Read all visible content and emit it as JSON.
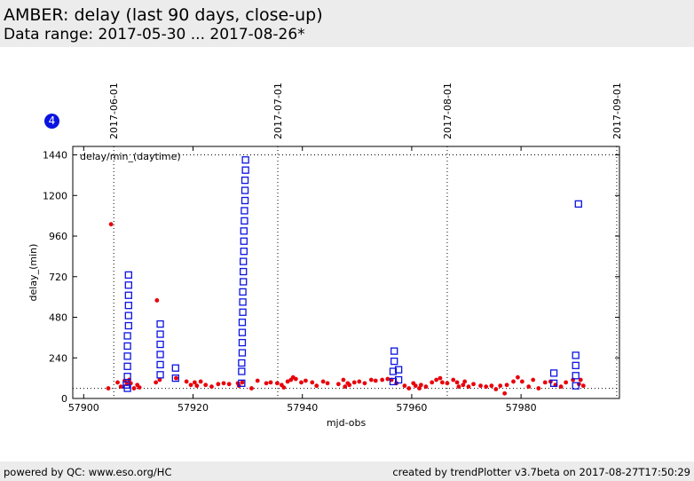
{
  "header": {
    "title": "AMBER: delay (last 90 days, close-up)",
    "subtitle": "Data range: 2017-05-30 ... 2017-08-26*"
  },
  "badge": {
    "label": "4",
    "color": "#0b14e0"
  },
  "footer": {
    "left": "powered by QC: www.eso.org/HC",
    "right": "created by trendPlotter v3.7beta on 2017-08-27T17:50:29"
  },
  "chart_data": {
    "type": "scatter",
    "title": "",
    "annotation": "delay/min_(daytime)",
    "xlabel": "mjd-obs",
    "ylabel": "delay_(min)",
    "xlim": [
      57898,
      57998
    ],
    "ylim": [
      0,
      1490
    ],
    "x_ticks": [
      57900,
      57920,
      57940,
      57960,
      57980
    ],
    "y_ticks": [
      0,
      240,
      480,
      720,
      960,
      1200,
      1440
    ],
    "date_markers": [
      {
        "label": "2017-06-01",
        "x": 57905.5
      },
      {
        "label": "2017-07-01",
        "x": 57935.5
      },
      {
        "label": "2017-08-01",
        "x": 57966.5
      },
      {
        "label": "2017-09-01",
        "x": 57997.5
      }
    ],
    "reference_lines": {
      "upper": 1440,
      "lower": 60
    },
    "grid": false,
    "colors": {
      "red_series": "#e8000b",
      "blue_series": "#0b14e0"
    },
    "series": [
      {
        "marker": "dot",
        "points": [
          [
            57904.5,
            60
          ],
          [
            57905.0,
            1030
          ],
          [
            57906.2,
            95
          ],
          [
            57906.8,
            70
          ],
          [
            57907.5,
            105
          ],
          [
            57907.9,
            85
          ],
          [
            57908.3,
            110
          ],
          [
            57908.6,
            90
          ],
          [
            57909.2,
            60
          ],
          [
            57909.8,
            80
          ],
          [
            57910.2,
            65
          ],
          [
            57913.2,
            95
          ],
          [
            57913.4,
            580
          ],
          [
            57913.9,
            110
          ],
          [
            57916.9,
            120
          ],
          [
            57918.8,
            100
          ],
          [
            57919.6,
            80
          ],
          [
            57920.3,
            95
          ],
          [
            57920.7,
            75
          ],
          [
            57921.4,
            100
          ],
          [
            57922.3,
            80
          ],
          [
            57923.4,
            70
          ],
          [
            57924.6,
            85
          ],
          [
            57925.6,
            90
          ],
          [
            57926.6,
            85
          ],
          [
            57928.2,
            90
          ],
          [
            57928.4,
            75
          ],
          [
            57929.0,
            95
          ],
          [
            57930.7,
            60
          ],
          [
            57931.8,
            105
          ],
          [
            57933.4,
            90
          ],
          [
            57934.2,
            95
          ],
          [
            57935.4,
            90
          ],
          [
            57936.2,
            80
          ],
          [
            57936.6,
            65
          ],
          [
            57937.3,
            100
          ],
          [
            57937.9,
            110
          ],
          [
            57938.3,
            125
          ],
          [
            57938.8,
            115
          ],
          [
            57939.8,
            95
          ],
          [
            57940.6,
            105
          ],
          [
            57941.8,
            95
          ],
          [
            57942.6,
            75
          ],
          [
            57943.8,
            100
          ],
          [
            57944.6,
            90
          ],
          [
            57946.6,
            85
          ],
          [
            57947.5,
            110
          ],
          [
            57947.8,
            70
          ],
          [
            57948.3,
            90
          ],
          [
            57948.6,
            80
          ],
          [
            57949.5,
            95
          ],
          [
            57950.4,
            100
          ],
          [
            57951.4,
            90
          ],
          [
            57952.6,
            110
          ],
          [
            57953.4,
            105
          ],
          [
            57954.6,
            110
          ],
          [
            57955.6,
            115
          ],
          [
            57956.3,
            110
          ],
          [
            57957.2,
            90
          ],
          [
            57958.7,
            75
          ],
          [
            57959.5,
            60
          ],
          [
            57960.3,
            90
          ],
          [
            57960.7,
            75
          ],
          [
            57961.4,
            60
          ],
          [
            57961.7,
            80
          ],
          [
            57962.6,
            70
          ],
          [
            57963.7,
            95
          ],
          [
            57964.5,
            110
          ],
          [
            57965.2,
            120
          ],
          [
            57965.6,
            95
          ],
          [
            57966.5,
            90
          ],
          [
            57967.6,
            110
          ],
          [
            57968.3,
            95
          ],
          [
            57968.6,
            70
          ],
          [
            57969.4,
            80
          ],
          [
            57969.7,
            100
          ],
          [
            57970.4,
            70
          ],
          [
            57971.3,
            85
          ],
          [
            57972.6,
            75
          ],
          [
            57973.6,
            70
          ],
          [
            57974.6,
            75
          ],
          [
            57975.4,
            55
          ],
          [
            57976.2,
            75
          ],
          [
            57977.0,
            30
          ],
          [
            57977.4,
            80
          ],
          [
            57978.6,
            100
          ],
          [
            57979.4,
            125
          ],
          [
            57980.2,
            100
          ],
          [
            57981.4,
            70
          ],
          [
            57982.2,
            110
          ],
          [
            57983.2,
            60
          ],
          [
            57984.4,
            95
          ],
          [
            57985.4,
            100
          ],
          [
            57986.3,
            80
          ],
          [
            57987.3,
            70
          ],
          [
            57988.2,
            95
          ],
          [
            57989.5,
            110
          ],
          [
            57990.6,
            85
          ],
          [
            57990.9,
            110
          ],
          [
            57991.4,
            75
          ]
        ]
      },
      {
        "marker": "square",
        "points": [
          [
            57908.0,
            60
          ],
          [
            57908.0,
            130
          ],
          [
            57908.0,
            190
          ],
          [
            57908.0,
            250
          ],
          [
            57908.0,
            310
          ],
          [
            57908.0,
            370
          ],
          [
            57908.2,
            430
          ],
          [
            57908.2,
            490
          ],
          [
            57908.2,
            550
          ],
          [
            57908.2,
            610
          ],
          [
            57908.2,
            670
          ],
          [
            57908.2,
            730
          ],
          [
            57907.8,
            80
          ],
          [
            57914.0,
            140
          ],
          [
            57914.0,
            200
          ],
          [
            57914.0,
            260
          ],
          [
            57914.0,
            320
          ],
          [
            57914.0,
            380
          ],
          [
            57914.0,
            440
          ],
          [
            57916.8,
            120
          ],
          [
            57916.8,
            180
          ],
          [
            57928.9,
            90
          ],
          [
            57928.9,
            160
          ],
          [
            57928.9,
            210
          ],
          [
            57929.0,
            270
          ],
          [
            57929.0,
            330
          ],
          [
            57929.0,
            390
          ],
          [
            57929.0,
            450
          ],
          [
            57929.1,
            510
          ],
          [
            57929.1,
            570
          ],
          [
            57929.1,
            630
          ],
          [
            57929.2,
            690
          ],
          [
            57929.2,
            750
          ],
          [
            57929.2,
            810
          ],
          [
            57929.3,
            870
          ],
          [
            57929.3,
            930
          ],
          [
            57929.3,
            990
          ],
          [
            57929.4,
            1050
          ],
          [
            57929.4,
            1110
          ],
          [
            57929.5,
            1170
          ],
          [
            57929.5,
            1230
          ],
          [
            57929.5,
            1290
          ],
          [
            57929.6,
            1350
          ],
          [
            57929.6,
            1410
          ],
          [
            57956.6,
            100
          ],
          [
            57956.6,
            160
          ],
          [
            57956.8,
            220
          ],
          [
            57956.8,
            280
          ],
          [
            57957.6,
            110
          ],
          [
            57957.6,
            170
          ],
          [
            57986.0,
            90
          ],
          [
            57986.0,
            150
          ],
          [
            57990.0,
            75
          ],
          [
            57990.0,
            135
          ],
          [
            57990.0,
            195
          ],
          [
            57990.0,
            255
          ],
          [
            57990.5,
            1150
          ]
        ]
      }
    ]
  }
}
